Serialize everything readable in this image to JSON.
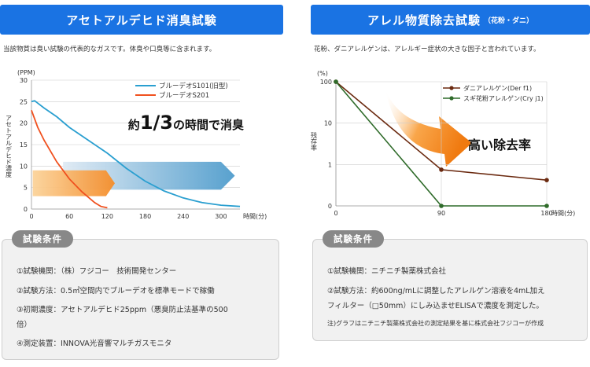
{
  "left": {
    "title": "アセトアルデヒド消臭試験",
    "description": "当該物質は臭い試験の代表的なガスです。体臭や口臭等に含まれます。",
    "conditions_tag": "試験条件",
    "conditions": [
      "①試験機関：（株）フジコー　技術開発センター",
      "②試験方法：0.5㎥空間内でブルーデオを標準モードで稼働",
      "③初期濃度：アセトアルデヒド25ppm（悪臭防止法基準の500",
      "倍）",
      "④測定装置：INNOVA光音響マルチガスモニタ"
    ]
  },
  "right": {
    "title": "アレル物質除去試験",
    "title_sub": "（花粉・ダニ）",
    "description": "花粉、ダニアレルゲンは、アレルギー症状の大きな因子と言われています。",
    "conditions_tag": "試験条件",
    "conditions": [
      "①試験機関：ニチニチ製薬株式会社",
      "②試験方法：約600ng/mLに調整したアレルゲン溶液を4mL加え",
      "フィルター（□50mm）にしみ込ませELISAで濃度を測定した。"
    ],
    "note": "注)グラフはニチニチ製薬株式会社の測定結果を基に株式会社フジコーが作成"
  },
  "chart_data": [
    {
      "type": "line",
      "title": "",
      "xlabel": "時間(分)",
      "ylabel": "アセトアルデヒド濃度",
      "yunit": "(PPM)",
      "xlim": [
        0,
        330
      ],
      "ylim": [
        0,
        30
      ],
      "xticks": [
        0,
        60,
        120,
        180,
        240,
        300
      ],
      "yticks": [
        0,
        5,
        10,
        15,
        20,
        25,
        30
      ],
      "annotation_pre": "約",
      "annotation_fraction": "1/3",
      "annotation_post": "の時間で消臭",
      "legend_position": "top-right",
      "colors": {
        "s101": "#2a9fd0",
        "s201": "#f0501e",
        "grid": "#cccccc"
      },
      "series": [
        {
          "name": "ブルーデオS101(旧型)",
          "x": [
            0,
            5,
            20,
            40,
            60,
            90,
            120,
            150,
            180,
            210,
            240,
            270,
            300,
            330
          ],
          "values": [
            25,
            25.2,
            23.5,
            21.5,
            19,
            16,
            13,
            9.5,
            6.5,
            4.2,
            2.6,
            1.5,
            0.9,
            0.6
          ]
        },
        {
          "name": "ブルーデオS201",
          "x": [
            0,
            10,
            20,
            40,
            60,
            80,
            100,
            110,
            120
          ],
          "values": [
            23,
            19,
            16,
            11,
            7,
            4,
            1.5,
            0.6,
            0.3
          ]
        }
      ]
    },
    {
      "type": "line",
      "title": "",
      "xlabel": "時間(分)",
      "ylabel": "残存率",
      "yunit": "(%)",
      "yscale": "log",
      "ylim": [
        0.1,
        100
      ],
      "xlim": [
        0,
        180
      ],
      "xticks": [
        0,
        90,
        180
      ],
      "yticks": [
        0.1,
        1,
        10,
        100
      ],
      "ytick_labels": [
        "0",
        "1",
        "10",
        "100"
      ],
      "annotation": "高い除去率",
      "legend_position": "top-right",
      "colors": {
        "der": "#6b2a10",
        "cry": "#2f6b2a",
        "grid": "#cccccc"
      },
      "series": [
        {
          "name": "ダニアレルゲン(Der f1)",
          "x": [
            0,
            90,
            180
          ],
          "values": [
            100,
            0.75,
            0.42
          ]
        },
        {
          "name": "スギ花粉アレルゲン(Cry j1)",
          "x": [
            0,
            90,
            180
          ],
          "values": [
            100,
            0.1,
            0.1
          ]
        }
      ]
    }
  ]
}
